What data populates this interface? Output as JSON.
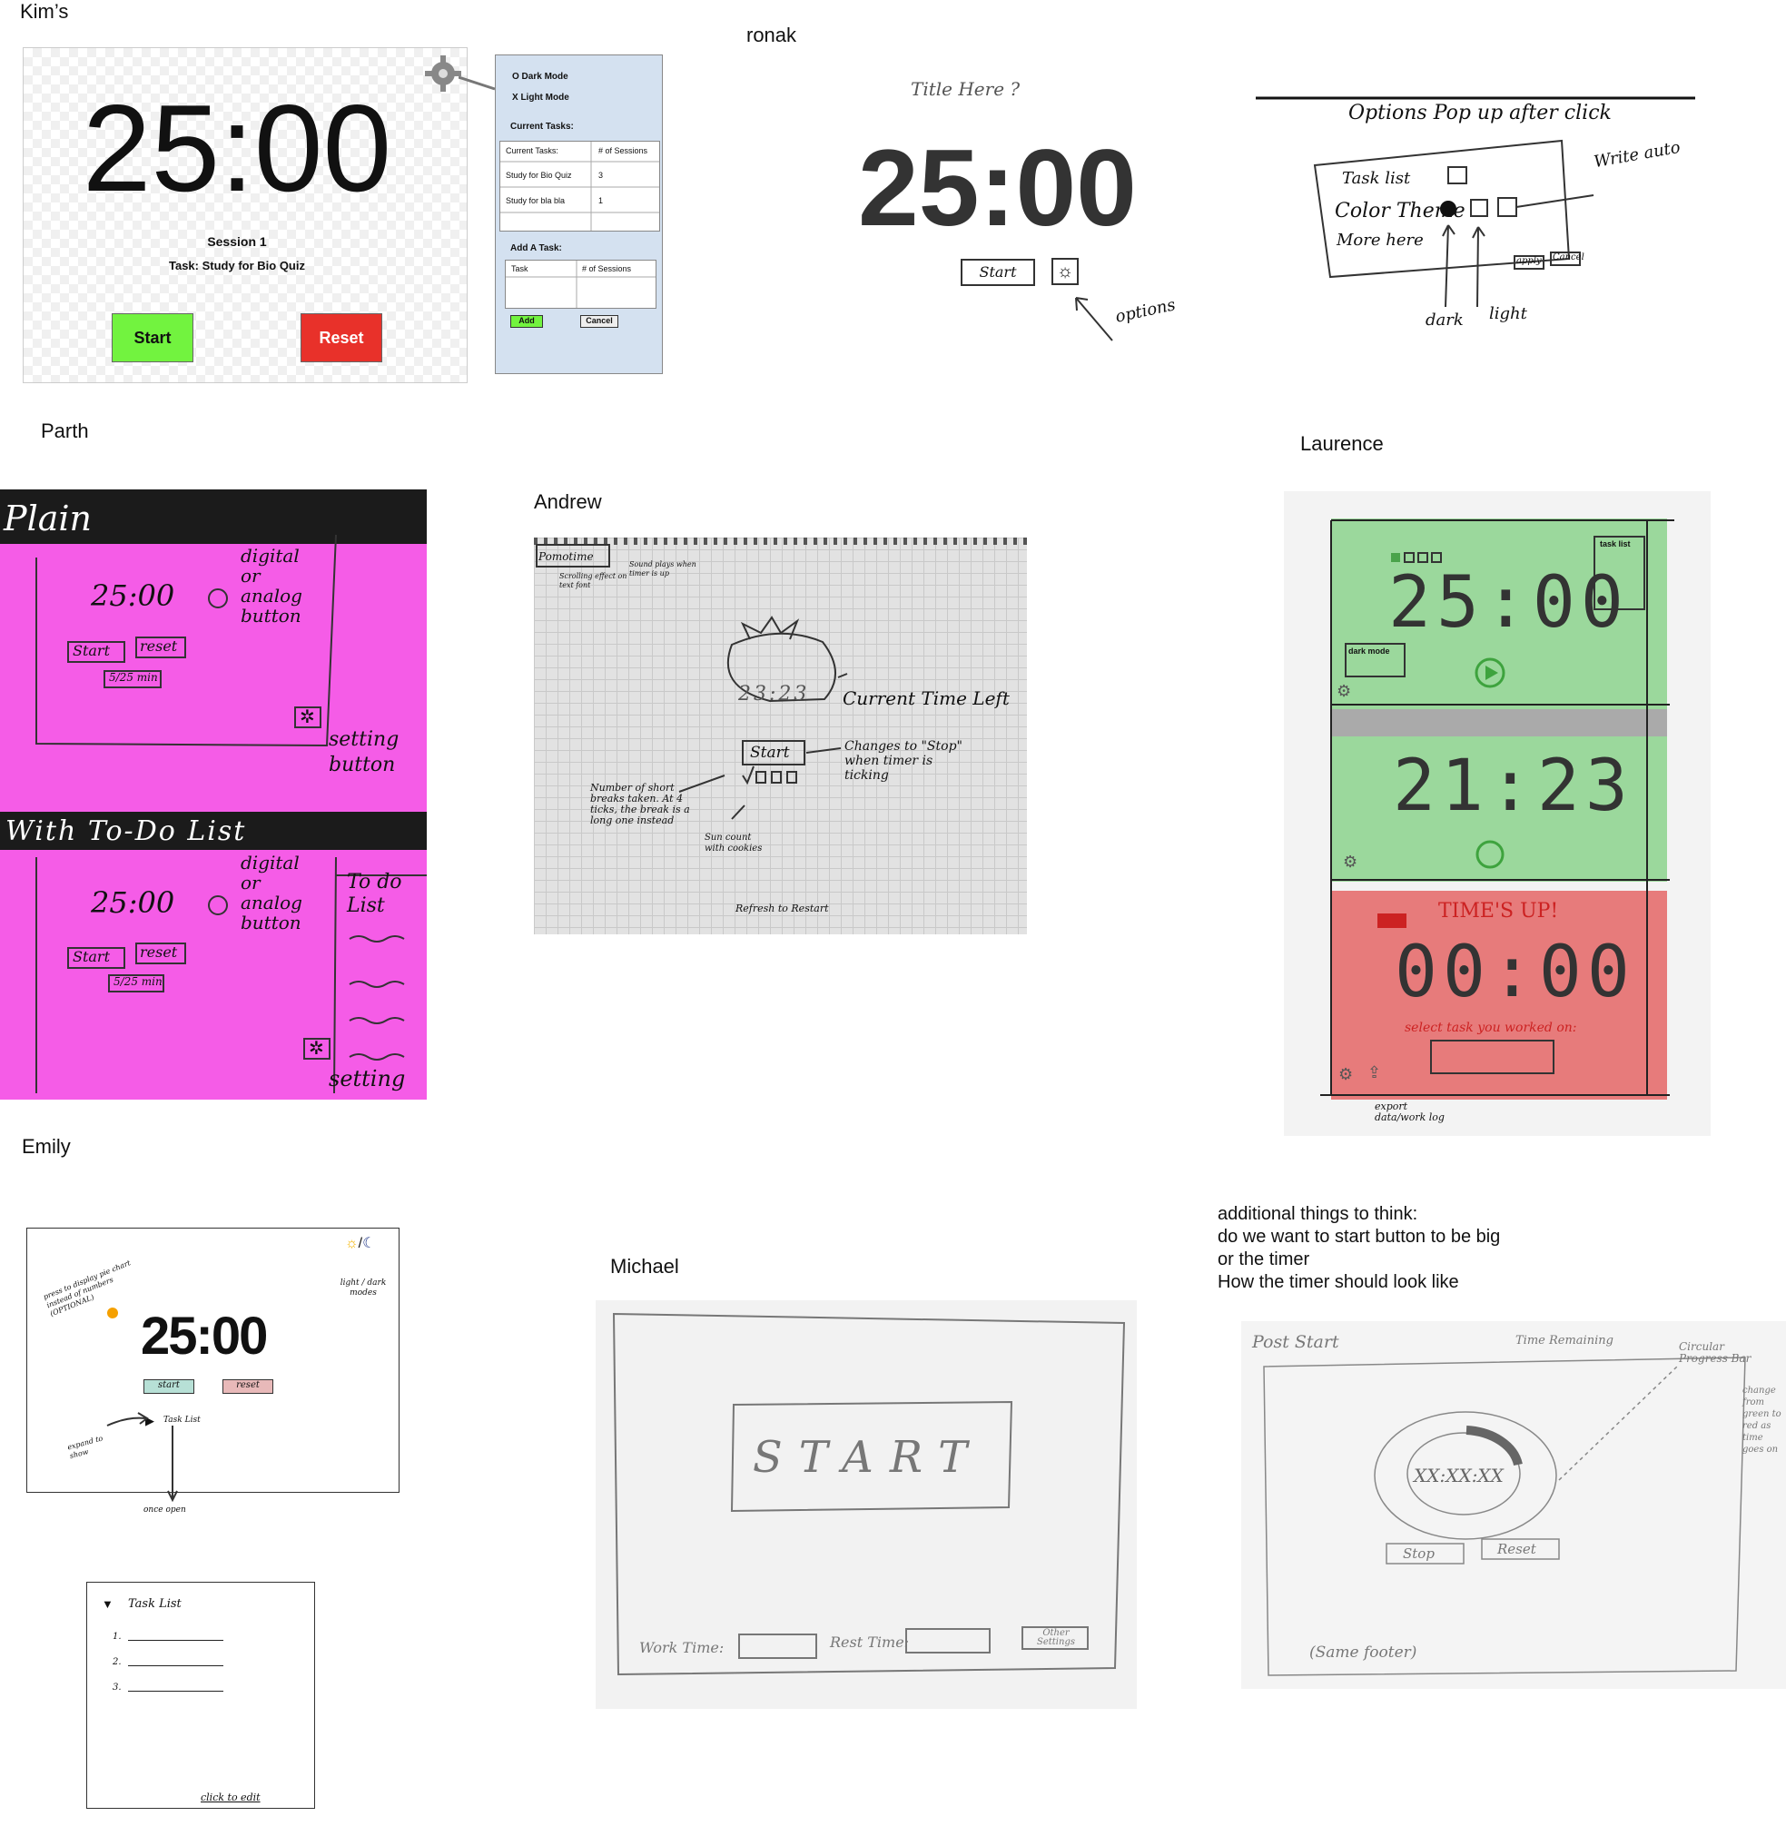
{
  "kim": {
    "author": "Kim’s",
    "time": "25:00",
    "session": "Session 1",
    "task": "Task: Study for Bio Quiz",
    "start": "Start",
    "reset": "Reset",
    "colors": {
      "start": "#72f33f",
      "reset": "#e8312a",
      "sidebar": "#d4e1f0"
    },
    "side": {
      "dark": "O Dark Mode",
      "light": "X Light Mode",
      "current_tasks": "Current Tasks:",
      "table_headers": [
        "Current Tasks:",
        "# of Sessions"
      ],
      "rows": [
        [
          "Study for Bio Quiz",
          "3"
        ],
        [
          "Study for bla bla",
          "1"
        ]
      ],
      "add_task": "Add A Task:",
      "add_headers": [
        "Task",
        "# of Sessions"
      ],
      "add": "Add",
      "cancel": "Cancel"
    }
  },
  "ronak": {
    "author": "ronak",
    "title_here": "Title Here ?",
    "time": "25:00",
    "start": "Start",
    "options_note": "options",
    "popup_heading": "Options Pop up after click",
    "popup_items": [
      "Task list",
      "Color Theme",
      "More here"
    ],
    "write_auto": "Write auto",
    "apply": "apply",
    "cancel": "Cancel",
    "dark": "dark",
    "light": "light"
  },
  "parth": {
    "author": "Parth",
    "plain": "Plain",
    "todo_heading": "With To-Do List",
    "time": "25:00",
    "start": "Start",
    "reset": "reset",
    "mins": "5/25 min",
    "digital_note": "digital or analog button",
    "setting_note": "setting button",
    "setting": "setting",
    "todo_list": "To do List",
    "color": "#f55ce7"
  },
  "andrew": {
    "author": "Andrew",
    "pomotime": "Pomotime",
    "time": "23:23",
    "current_time": "Current Time Left",
    "start": "Start",
    "changes_note": "Changes to \"Stop\" when timer is ticking",
    "breaks_note": "Number of short breaks taken. At 4 ticks, the break is a long one instead",
    "sun_note": "Sun count with cookies",
    "refresh_note": "Refresh to Restart",
    "scroll_note": "Scrolling effect on text font",
    "sound_note": "Sound plays when timer is up"
  },
  "laurence": {
    "author": "Laurence",
    "time1": "25:00",
    "time2": "21:23",
    "time3": "00:00",
    "times_up": "TIME'S UP!",
    "select_task": "select task you worked on:",
    "dark_mode": "dark mode",
    "task_list": "task list",
    "export": "export data/work log",
    "colors": {
      "green": "#9bd89c",
      "red": "#e77b7b"
    }
  },
  "emily": {
    "author": "Emily",
    "time": "25:00",
    "start": "start",
    "reset": "reset",
    "task_list": "Task List",
    "mode_note": "light / dark modes",
    "pie_note": "press to display pie chart instead of numbers (OPTIONAL)",
    "expand_note": "expand to show",
    "once_open": "once open",
    "list_heading": "Task List",
    "list_numbers": [
      "1.",
      "2.",
      "3."
    ],
    "click_edit": "click to edit"
  },
  "michael": {
    "author": "Michael",
    "start": "START",
    "work_time": "Work Time:",
    "rest_time": "Rest Time:",
    "other_settings": "Other Settings"
  },
  "additional": {
    "lines": [
      "additional things to think:",
      "do we want to start button to be big",
      "or the timer",
      "How the timer should look like"
    ],
    "post_start": "Post Start",
    "time_remaining": "Time Remaining",
    "progress_note": "Circular Progress Bar",
    "change_note": "change from green to red as time goes on",
    "time": "XX:XX:XX",
    "stop": "Stop",
    "reset": "Reset",
    "footer": "(Same footer)"
  }
}
